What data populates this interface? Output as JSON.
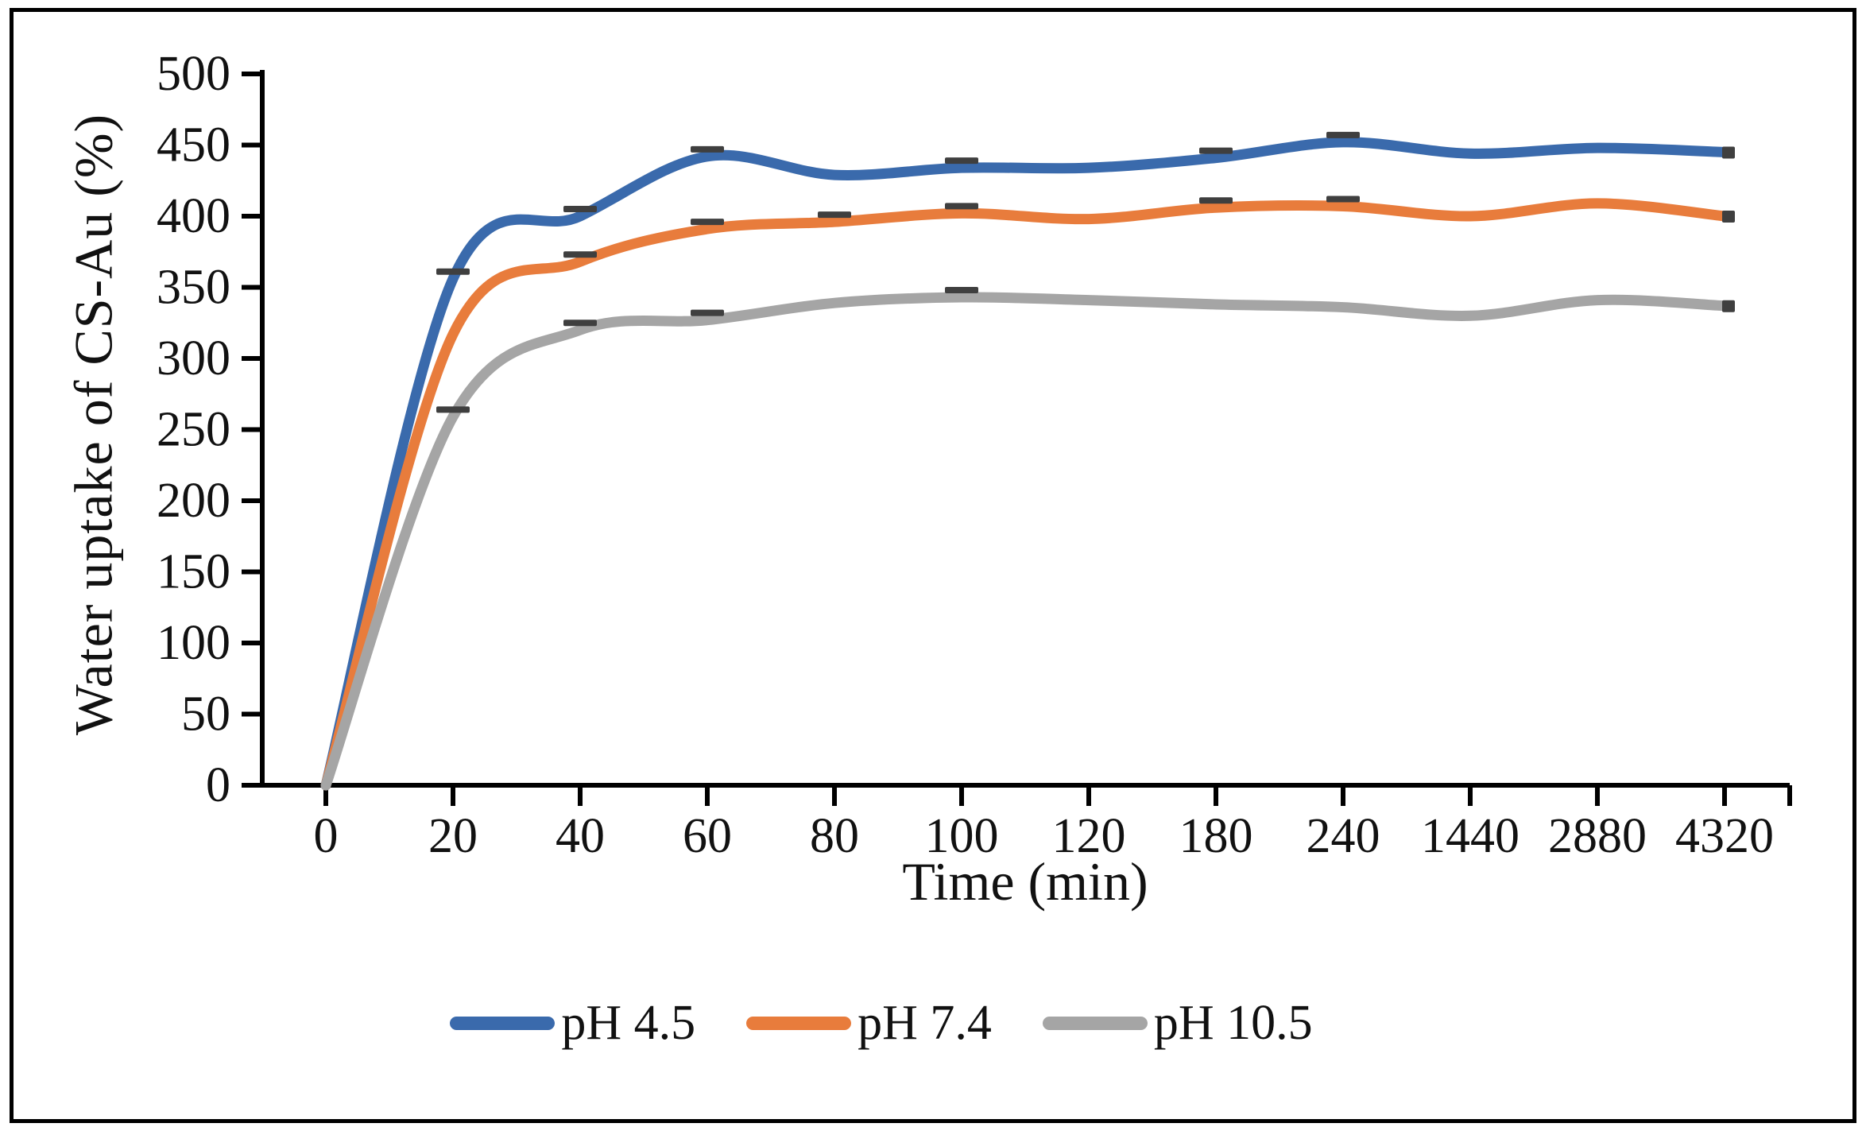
{
  "chart_data": {
    "type": "line",
    "smoothed": true,
    "title": "",
    "xlabel": "Time (min)",
    "ylabel": "Water uptake of CS-Au (%)",
    "x_axis_type": "category",
    "categories": [
      "0",
      "20",
      "40",
      "60",
      "80",
      "100",
      "120",
      "180",
      "240",
      "1440",
      "2880",
      "4320"
    ],
    "y_ticks": [
      0,
      50,
      100,
      150,
      200,
      250,
      300,
      350,
      400,
      450,
      500
    ],
    "ylim": [
      0,
      500
    ],
    "grid": false,
    "legend_position": "bottom",
    "error_bar_color": "#3f3f3f",
    "series": [
      {
        "name": "pH 4.5",
        "color": "#3A6AAC",
        "values": [
          0,
          356,
          400,
          442,
          429,
          434,
          434,
          441,
          452,
          444,
          448,
          445
        ],
        "error_cap_indices": [
          1,
          2,
          3,
          5,
          7,
          8,
          11
        ]
      },
      {
        "name": "pH 7.4",
        "color": "#E87C3C",
        "values": [
          0,
          317,
          368,
          391,
          396,
          402,
          398,
          406,
          407,
          400,
          409,
          400
        ],
        "error_cap_indices": [
          2,
          3,
          4,
          5,
          7,
          8,
          11
        ]
      },
      {
        "name": "pH 10.5",
        "color": "#A5A5A5",
        "values": [
          0,
          259,
          320,
          327,
          339,
          343,
          341,
          338,
          336,
          330,
          341,
          337
        ],
        "error_cap_indices": [
          1,
          2,
          3,
          5,
          11
        ]
      }
    ],
    "axis_color": "#000000",
    "background": "#ffffff"
  }
}
